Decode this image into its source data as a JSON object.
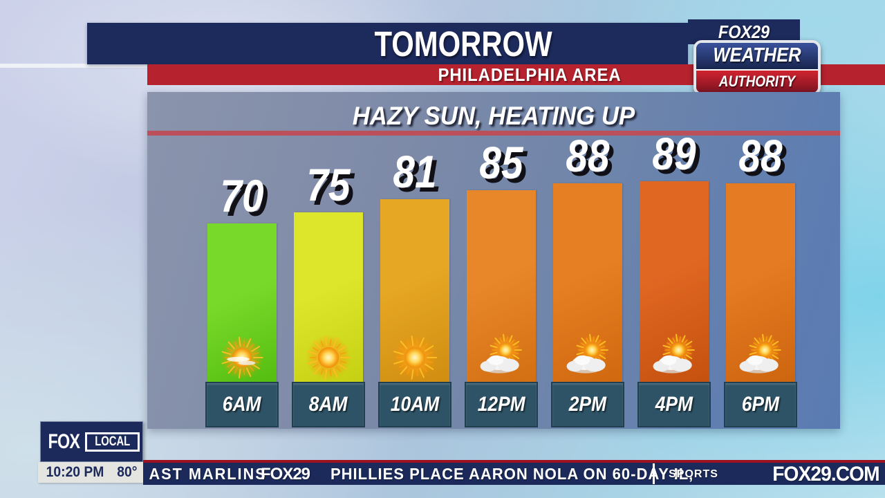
{
  "colors": {
    "banner_navy": "#1c2a5c",
    "stripe_red": "#b6222d",
    "panel_slate_left": "#8b94ac",
    "panel_slate_right": "#5a7bb2",
    "headline_rule_red": "#bb4f5a",
    "timebox_teal": "#2e5366",
    "ticker_navy": "#1b2a5a",
    "ticker_rule_red": "#9e1120",
    "status_bar_gray": "#e4e4e1"
  },
  "header": {
    "title": "TOMORROW",
    "subtitle": "PHILADELPHIA AREA"
  },
  "brand": {
    "network": "FOX29",
    "badge_line1": "WEATHER",
    "badge_line2": "AUTHORITY"
  },
  "chart_data": {
    "type": "bar",
    "title": "HAZY SUN, HEATING UP",
    "categories": [
      "6AM",
      "8AM",
      "10AM",
      "12PM",
      "2PM",
      "4PM",
      "6PM"
    ],
    "values": [
      70,
      75,
      81,
      85,
      88,
      89,
      88
    ],
    "icons": [
      "hazy-sun",
      "sun",
      "sun",
      "sun-cloud",
      "sun-cloud",
      "sun-cloud",
      "sun-cloud"
    ],
    "bar_colors": [
      [
        "#79d92a",
        "#54bd10"
      ],
      [
        "#dde62b",
        "#c6d013"
      ],
      [
        "#e6a724",
        "#d08d10"
      ],
      [
        "#e8872a",
        "#d26f12"
      ],
      [
        "#e67e24",
        "#d0680f"
      ],
      [
        "#df6722",
        "#c5510e"
      ],
      [
        "#e57b22",
        "#cd650f"
      ]
    ],
    "xlabel": "",
    "ylabel": "",
    "ylim": [
      60,
      95
    ],
    "grid": false,
    "legend": "none",
    "value_labels": true
  },
  "fox_local": {
    "fox": "FOX",
    "local": "LOCAL"
  },
  "status": {
    "clock": "10:20 PM",
    "temperature": "80°"
  },
  "ticker": {
    "left_text": "AST MARLINS",
    "network": "FOX29",
    "headline": "PHILLIES PLACE AARON NOLA ON 60-DAY IL,",
    "section_label": "SPORTS",
    "site": "FOX29.COM"
  }
}
